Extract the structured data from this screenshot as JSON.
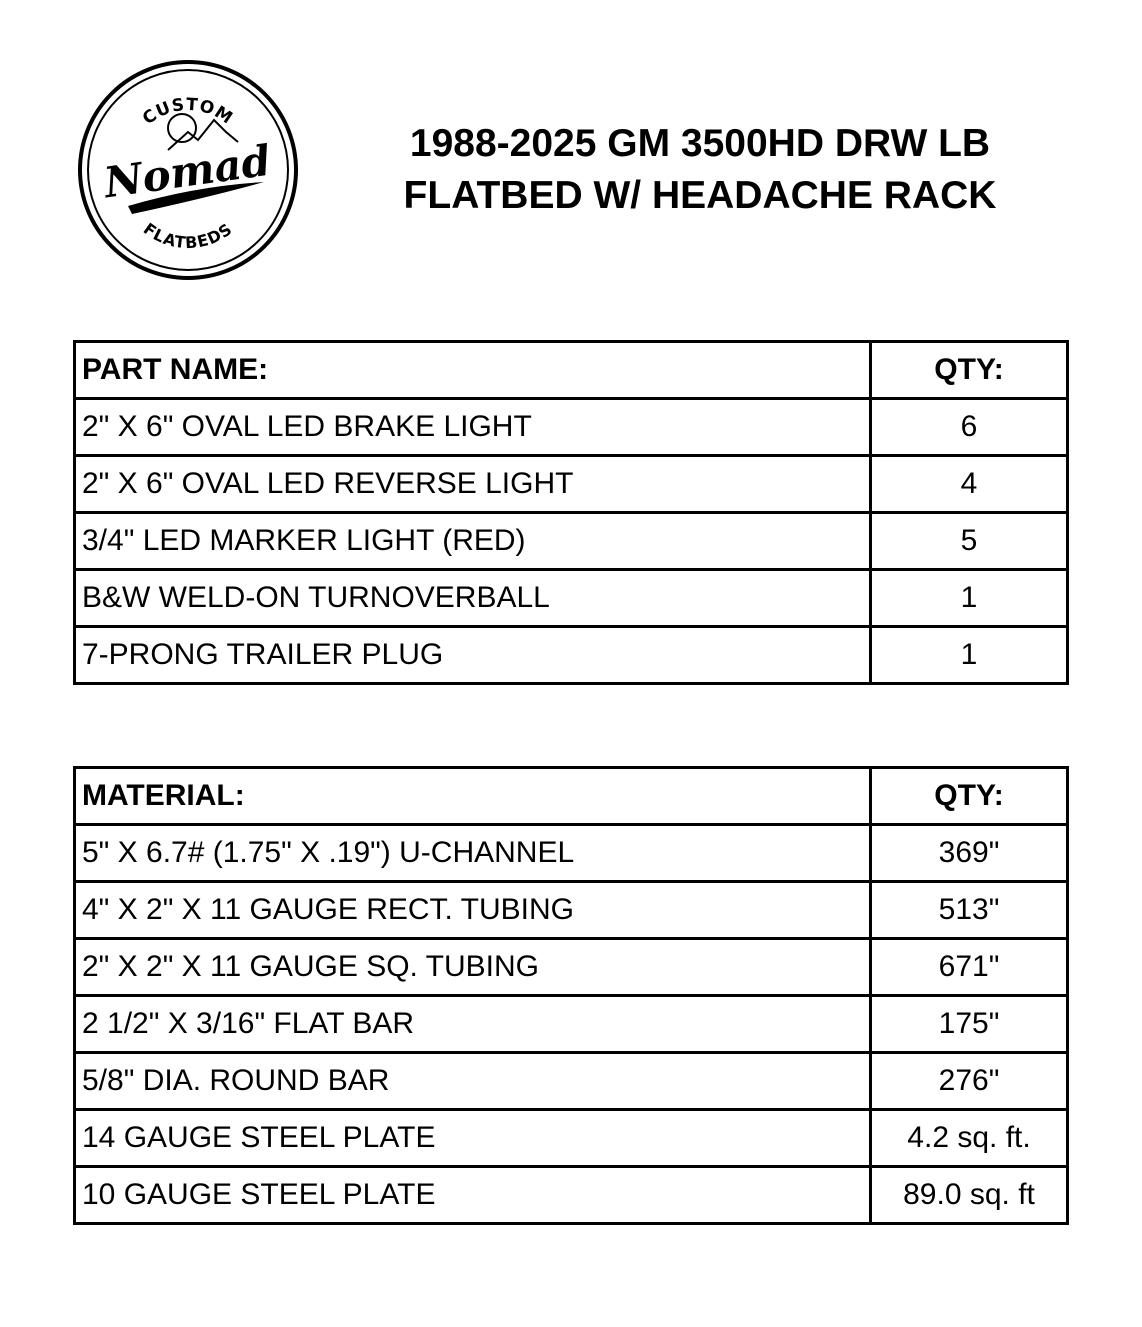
{
  "logo": {
    "top_text": "CUSTOM",
    "main_text": "Nomad",
    "bottom_text": "FLATBEDS"
  },
  "title": {
    "line1": "1988-2025 GM 3500HD DRW LB",
    "line2": "FLATBED W/ HEADACHE RACK"
  },
  "parts_table": {
    "header": {
      "name": "PART NAME:",
      "qty": "QTY:"
    },
    "rows": [
      {
        "name": "2\" X 6\" OVAL LED BRAKE LIGHT",
        "qty": "6"
      },
      {
        "name": "2\" X 6\" OVAL LED REVERSE LIGHT",
        "qty": "4"
      },
      {
        "name": "3/4\" LED MARKER LIGHT (RED)",
        "qty": "5"
      },
      {
        "name": "B&W WELD-ON TURNOVERBALL",
        "qty": "1"
      },
      {
        "name": "7-PRONG TRAILER PLUG",
        "qty": "1"
      }
    ]
  },
  "materials_table": {
    "header": {
      "name": "MATERIAL:",
      "qty": "QTY:"
    },
    "rows": [
      {
        "name": "5\" X 6.7# (1.75\" X .19\") U-CHANNEL",
        "qty": "369\""
      },
      {
        "name": "4\" X 2\" X 11 GAUGE RECT. TUBING",
        "qty": "513\""
      },
      {
        "name": "2\" X 2\" X 11 GAUGE SQ. TUBING",
        "qty": "671\""
      },
      {
        "name": "2 1/2\" X 3/16\" FLAT BAR",
        "qty": "175\""
      },
      {
        "name": "5/8\" DIA. ROUND BAR",
        "qty": "276\""
      },
      {
        "name": "14 GAUGE STEEL PLATE",
        "qty": "4.2 sq. ft."
      },
      {
        "name": "10 GAUGE STEEL PLATE",
        "qty": "89.0 sq. ft"
      }
    ]
  }
}
